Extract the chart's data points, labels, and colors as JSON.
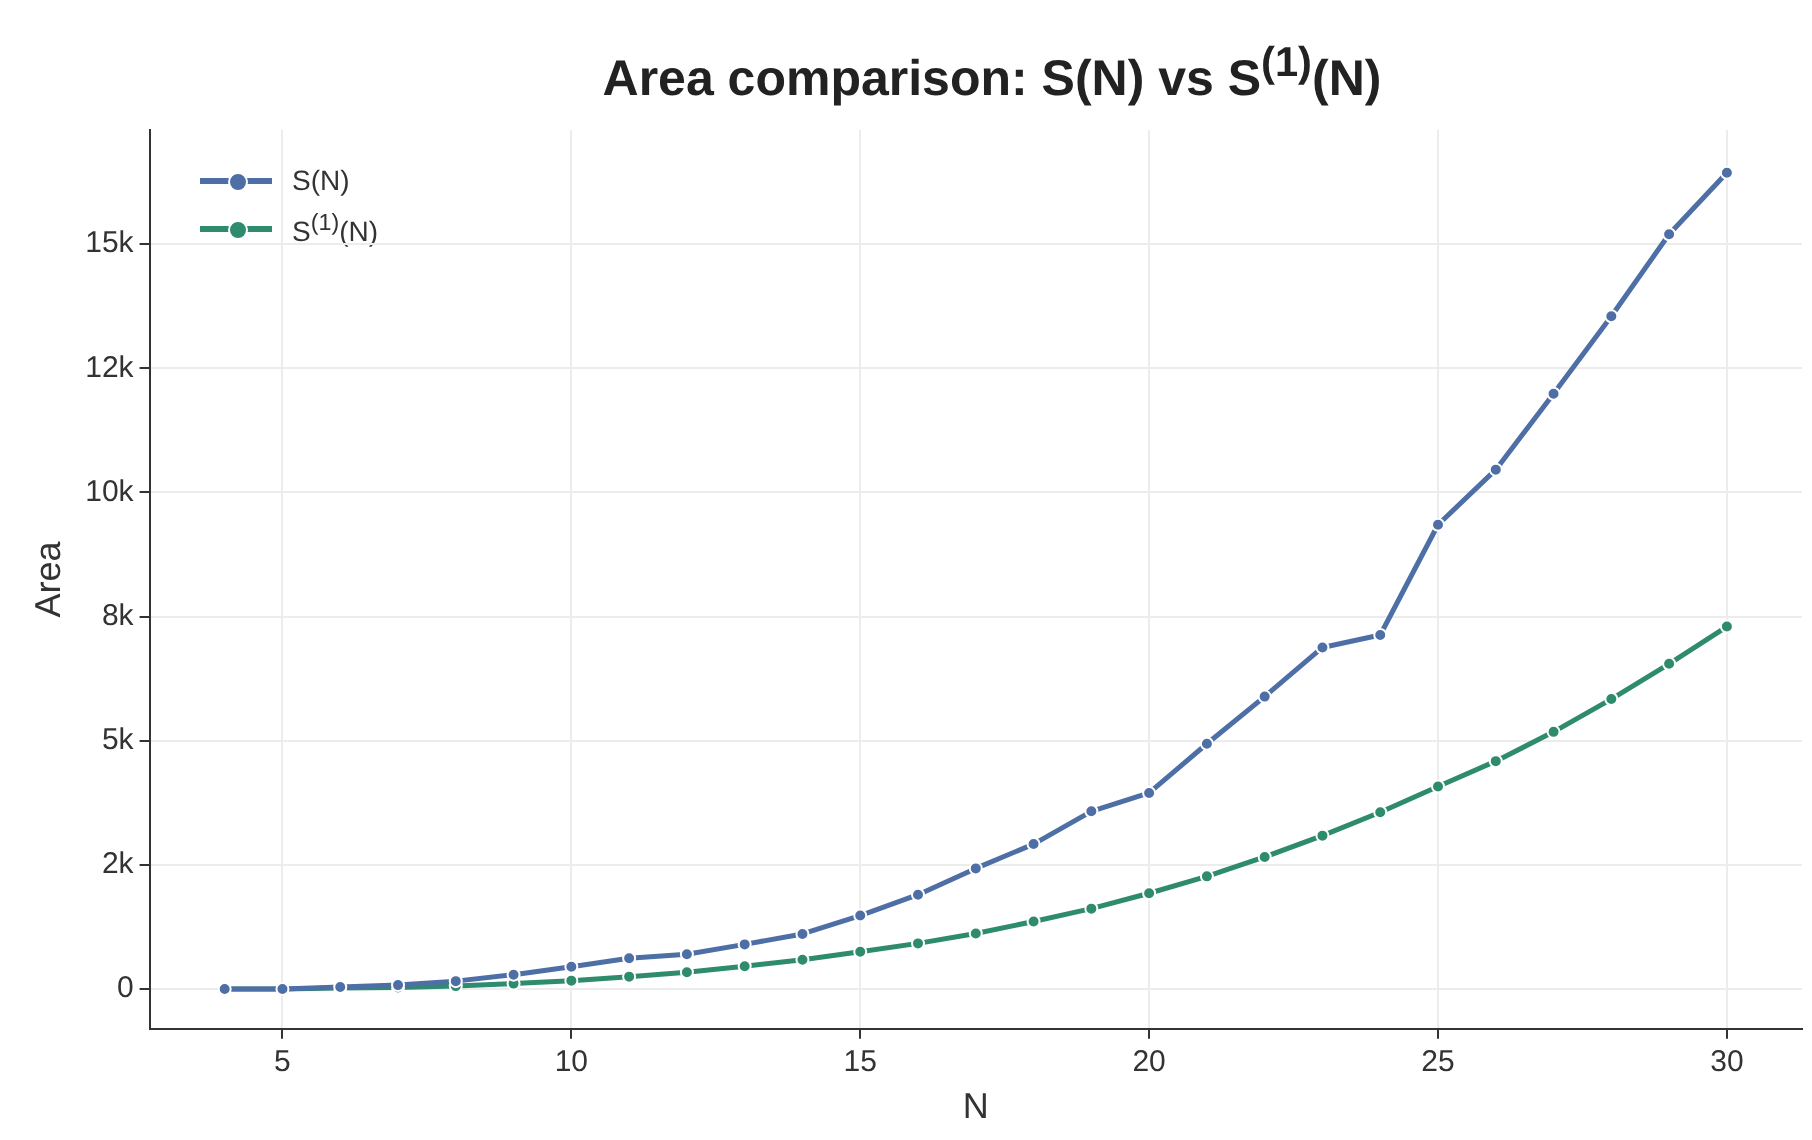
{
  "chart_data": {
    "type": "line",
    "title": "Area comparison: S(N) vs S$^{(1)}$(N)",
    "xlabel": "N",
    "ylabel": "Area",
    "x": [
      4,
      5,
      6,
      7,
      8,
      9,
      10,
      11,
      12,
      13,
      14,
      15,
      16,
      17,
      18,
      19,
      20,
      21,
      22,
      23,
      24,
      25,
      26,
      27,
      28,
      29,
      30
    ],
    "series": [
      {
        "name": "S(N)",
        "color": "#4e6fa6",
        "values": [
          0,
          0,
          40,
          80,
          160,
          290,
          450,
          620,
          700,
          900,
          1110,
          1480,
          1900,
          2430,
          2920,
          3580,
          3950,
          4940,
          5890,
          6880,
          7130,
          9350,
          10460,
          11990,
          13550,
          15200,
          16440
        ]
      },
      {
        "name": "S$^{(1)}$(N)",
        "color": "#2e8b6e",
        "values": [
          0,
          0,
          20,
          30,
          60,
          110,
          170,
          250,
          340,
          460,
          590,
          750,
          920,
          1120,
          1360,
          1620,
          1930,
          2270,
          2660,
          3090,
          3560,
          4080,
          4590,
          5180,
          5840,
          6550,
          7300
        ]
      }
    ],
    "xlim": [
      2.7,
      31.3
    ],
    "xticks": [
      5,
      10,
      15,
      20,
      25,
      30
    ],
    "ylim": [
      -800,
      17300
    ],
    "yticks": [
      0,
      {
        "value": 2500,
        "label": "2k"
      },
      {
        "value": 5000,
        "label": "5k"
      },
      {
        "value": 7500,
        "label": "8k"
      },
      {
        "value": 10000,
        "label": "10k"
      },
      {
        "value": 12500,
        "label": "12k"
      },
      {
        "value": 15000,
        "label": "15k"
      }
    ],
    "grid": true,
    "legend": "top left",
    "marker": "circle",
    "line_style": "solid"
  }
}
